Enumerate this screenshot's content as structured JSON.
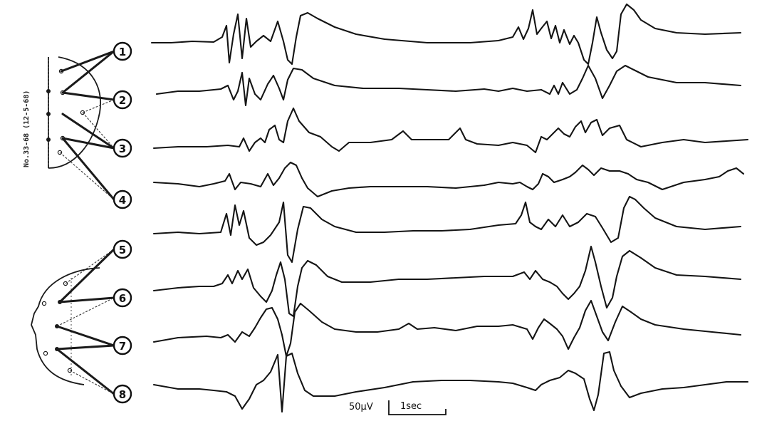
{
  "record_id": "No.33-68 (12-5-68)",
  "channels": [
    "1",
    "2",
    "3",
    "4",
    "5",
    "6",
    "7",
    "8"
  ],
  "calibration": {
    "amplitude_label": "50μV",
    "time_label": "1sec"
  },
  "ink_color": "#141414",
  "paper_color": "#ffffff"
}
